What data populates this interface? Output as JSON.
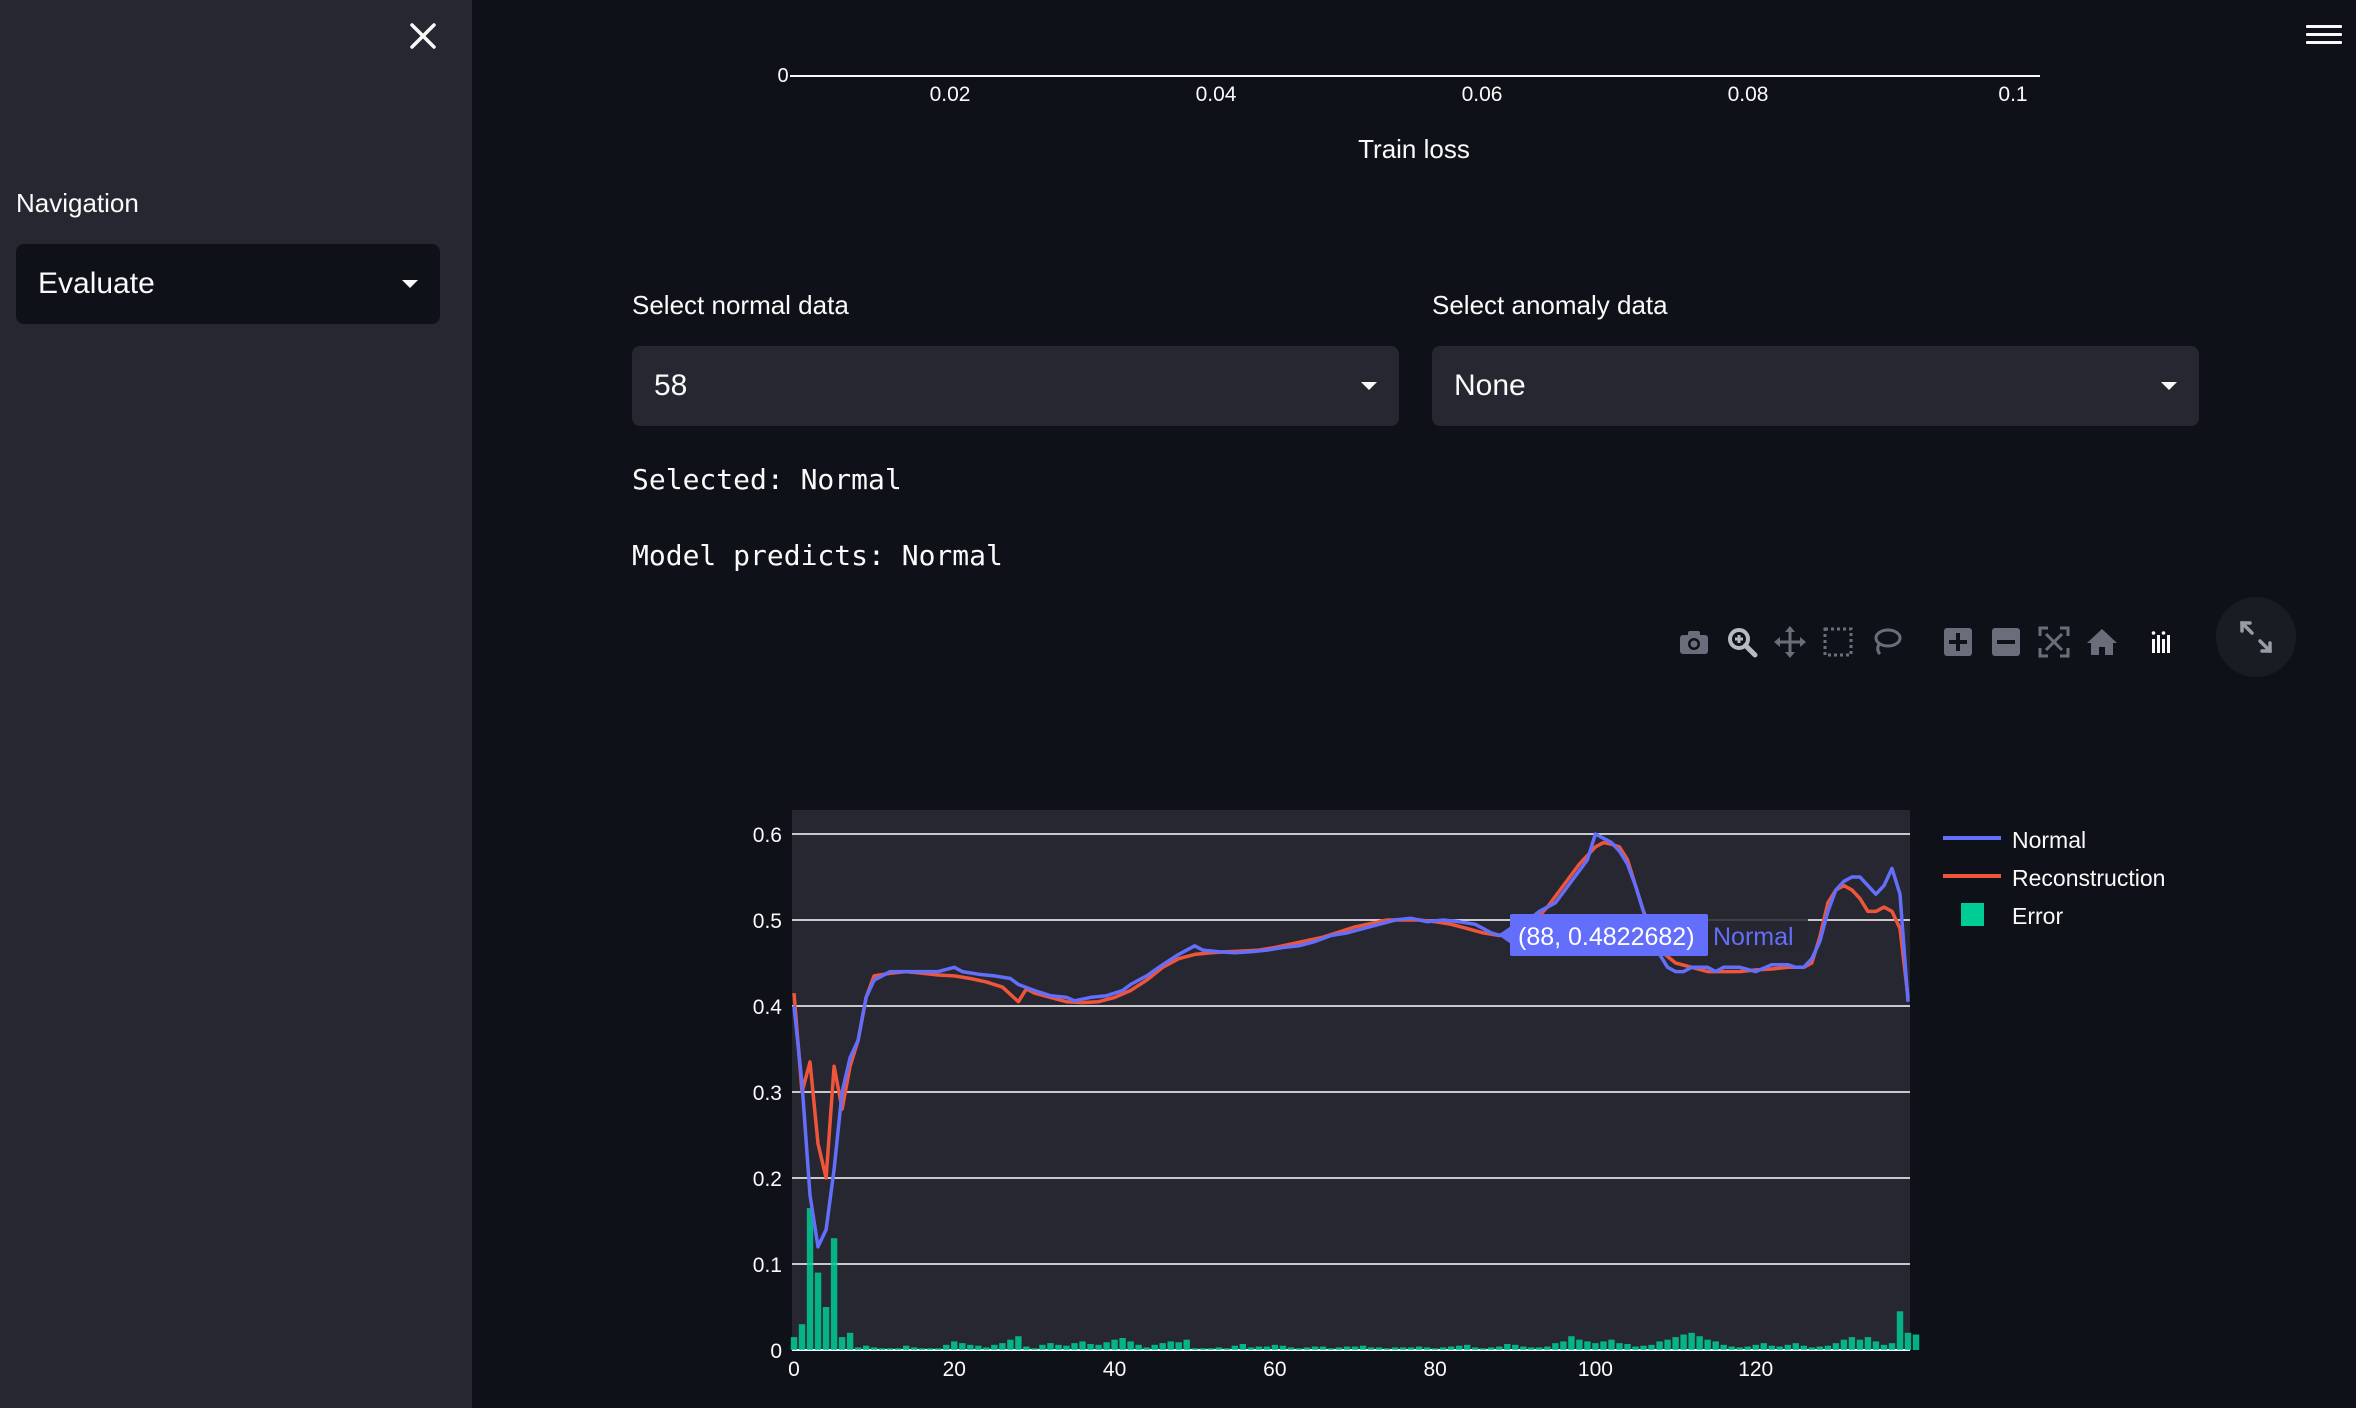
{
  "sidebar": {
    "nav_label": "Navigation",
    "nav_selected": "Evaluate"
  },
  "top_chart": {
    "x_ticks": [
      "0.02",
      "0.04",
      "0.06",
      "0.08",
      "0.1"
    ],
    "partial_y_tick": "0",
    "x_label": "Train loss"
  },
  "normal_select": {
    "label": "Select normal data",
    "value": "58"
  },
  "anomaly_select": {
    "label": "Select anomaly data",
    "value": "None"
  },
  "status": {
    "selected_text": "Selected: Normal",
    "prediction_text": "Model predicts: Normal"
  },
  "chart_data": {
    "type": "line",
    "xlim": [
      0,
      139
    ],
    "ylim": [
      0,
      0.6
    ],
    "x_ticks": [
      0,
      20,
      40,
      60,
      80,
      100,
      120
    ],
    "y_ticks": [
      0,
      0.1,
      0.2,
      0.3,
      0.4,
      0.5,
      0.6
    ],
    "x_tick_labels": [
      "0",
      "20",
      "40",
      "60",
      "80",
      "100",
      "120"
    ],
    "y_tick_labels": [
      "0",
      "0.1",
      "0.2",
      "0.3",
      "0.4",
      "0.5",
      "0.6"
    ],
    "legend": [
      "Normal",
      "Reconstruction",
      "Error"
    ],
    "hover": {
      "x": 88,
      "y": 0.4822682,
      "label": "(88, 0.4822682)",
      "series": "Normal"
    },
    "colors": {
      "normal": "#636efa",
      "reconstruction": "#ef553b",
      "error": "#00cc96",
      "plot_bg": "#262730",
      "grid": "#ffffff"
    },
    "series": [
      {
        "name": "Normal",
        "type": "line",
        "points": [
          [
            0,
            0.4
          ],
          [
            1,
            0.31
          ],
          [
            2,
            0.18
          ],
          [
            3,
            0.12
          ],
          [
            4,
            0.14
          ],
          [
            5,
            0.21
          ],
          [
            6,
            0.3
          ],
          [
            7,
            0.34
          ],
          [
            8,
            0.36
          ],
          [
            9,
            0.41
          ],
          [
            10,
            0.43
          ],
          [
            12,
            0.44
          ],
          [
            14,
            0.44
          ],
          [
            16,
            0.44
          ],
          [
            18,
            0.44
          ],
          [
            20,
            0.445
          ],
          [
            21,
            0.44
          ],
          [
            23,
            0.437
          ],
          [
            25,
            0.435
          ],
          [
            27,
            0.432
          ],
          [
            28,
            0.425
          ],
          [
            30,
            0.418
          ],
          [
            32,
            0.412
          ],
          [
            34,
            0.41
          ],
          [
            35,
            0.406
          ],
          [
            37,
            0.41
          ],
          [
            39,
            0.412
          ],
          [
            41,
            0.418
          ],
          [
            42,
            0.425
          ],
          [
            44,
            0.435
          ],
          [
            46,
            0.448
          ],
          [
            48,
            0.46
          ],
          [
            50,
            0.47
          ],
          [
            51,
            0.465
          ],
          [
            53,
            0.463
          ],
          [
            55,
            0.462
          ],
          [
            57,
            0.463
          ],
          [
            59,
            0.465
          ],
          [
            61,
            0.468
          ],
          [
            63,
            0.47
          ],
          [
            65,
            0.475
          ],
          [
            67,
            0.482
          ],
          [
            69,
            0.485
          ],
          [
            71,
            0.49
          ],
          [
            73,
            0.495
          ],
          [
            75,
            0.5
          ],
          [
            77,
            0.502
          ],
          [
            79,
            0.498
          ],
          [
            81,
            0.5
          ],
          [
            83,
            0.498
          ],
          [
            85,
            0.495
          ],
          [
            86,
            0.49
          ],
          [
            87,
            0.485
          ],
          [
            88,
            0.4822682
          ],
          [
            89,
            0.485
          ],
          [
            91,
            0.495
          ],
          [
            93,
            0.51
          ],
          [
            95,
            0.52
          ],
          [
            97,
            0.545
          ],
          [
            99,
            0.57
          ],
          [
            100,
            0.6
          ],
          [
            101,
            0.595
          ],
          [
            102,
            0.59
          ],
          [
            103,
            0.58
          ],
          [
            104,
            0.565
          ],
          [
            105,
            0.54
          ],
          [
            106,
            0.51
          ],
          [
            107,
            0.48
          ],
          [
            108,
            0.46
          ],
          [
            109,
            0.445
          ],
          [
            110,
            0.44
          ],
          [
            111,
            0.44
          ],
          [
            112,
            0.445
          ],
          [
            114,
            0.445
          ],
          [
            115,
            0.44
          ],
          [
            116,
            0.445
          ],
          [
            118,
            0.445
          ],
          [
            120,
            0.44
          ],
          [
            122,
            0.448
          ],
          [
            124,
            0.448
          ],
          [
            125,
            0.445
          ],
          [
            126,
            0.445
          ],
          [
            127,
            0.455
          ],
          [
            128,
            0.475
          ],
          [
            129,
            0.51
          ],
          [
            130,
            0.535
          ],
          [
            131,
            0.545
          ],
          [
            132,
            0.55
          ],
          [
            133,
            0.55
          ],
          [
            134,
            0.54
          ],
          [
            135,
            0.53
          ],
          [
            136,
            0.54
          ],
          [
            137,
            0.56
          ],
          [
            138,
            0.53
          ],
          [
            139,
            0.405
          ]
        ]
      },
      {
        "name": "Reconstruction",
        "type": "line",
        "points": [
          [
            0,
            0.415
          ],
          [
            1,
            0.3
          ],
          [
            2,
            0.335
          ],
          [
            3,
            0.24
          ],
          [
            4,
            0.2
          ],
          [
            5,
            0.33
          ],
          [
            6,
            0.28
          ],
          [
            7,
            0.33
          ],
          [
            8,
            0.36
          ],
          [
            9,
            0.41
          ],
          [
            10,
            0.435
          ],
          [
            12,
            0.438
          ],
          [
            14,
            0.44
          ],
          [
            16,
            0.438
          ],
          [
            18,
            0.436
          ],
          [
            20,
            0.435
          ],
          [
            22,
            0.432
          ],
          [
            24,
            0.428
          ],
          [
            26,
            0.422
          ],
          [
            28,
            0.405
          ],
          [
            29,
            0.42
          ],
          [
            30,
            0.415
          ],
          [
            32,
            0.41
          ],
          [
            34,
            0.405
          ],
          [
            36,
            0.404
          ],
          [
            38,
            0.405
          ],
          [
            40,
            0.41
          ],
          [
            42,
            0.418
          ],
          [
            44,
            0.43
          ],
          [
            46,
            0.445
          ],
          [
            48,
            0.455
          ],
          [
            50,
            0.46
          ],
          [
            52,
            0.462
          ],
          [
            54,
            0.463
          ],
          [
            56,
            0.464
          ],
          [
            58,
            0.465
          ],
          [
            60,
            0.468
          ],
          [
            62,
            0.472
          ],
          [
            64,
            0.476
          ],
          [
            66,
            0.48
          ],
          [
            68,
            0.486
          ],
          [
            70,
            0.492
          ],
          [
            72,
            0.496
          ],
          [
            74,
            0.5
          ],
          [
            76,
            0.5
          ],
          [
            78,
            0.5
          ],
          [
            80,
            0.498
          ],
          [
            82,
            0.495
          ],
          [
            84,
            0.49
          ],
          [
            86,
            0.485
          ],
          [
            88,
            0.482
          ],
          [
            90,
            0.485
          ],
          [
            92,
            0.495
          ],
          [
            94,
            0.515
          ],
          [
            96,
            0.54
          ],
          [
            98,
            0.565
          ],
          [
            100,
            0.585
          ],
          [
            101,
            0.59
          ],
          [
            102,
            0.588
          ],
          [
            103,
            0.585
          ],
          [
            104,
            0.57
          ],
          [
            105,
            0.54
          ],
          [
            106,
            0.51
          ],
          [
            107,
            0.49
          ],
          [
            108,
            0.465
          ],
          [
            110,
            0.45
          ],
          [
            112,
            0.445
          ],
          [
            114,
            0.44
          ],
          [
            116,
            0.44
          ],
          [
            118,
            0.44
          ],
          [
            120,
            0.442
          ],
          [
            122,
            0.443
          ],
          [
            124,
            0.445
          ],
          [
            126,
            0.445
          ],
          [
            127,
            0.45
          ],
          [
            128,
            0.48
          ],
          [
            129,
            0.52
          ],
          [
            130,
            0.535
          ],
          [
            131,
            0.54
          ],
          [
            132,
            0.535
          ],
          [
            133,
            0.525
          ],
          [
            134,
            0.51
          ],
          [
            135,
            0.51
          ],
          [
            136,
            0.515
          ],
          [
            137,
            0.51
          ],
          [
            138,
            0.49
          ],
          [
            139,
            0.41
          ]
        ]
      },
      {
        "name": "Error",
        "type": "bar",
        "values": [
          0.015,
          0.03,
          0.165,
          0.09,
          0.05,
          0.13,
          0.015,
          0.02,
          0.003,
          0.005,
          0.003,
          0.002,
          0.002,
          0.002,
          0.005,
          0.003,
          0.002,
          0.002,
          0.002,
          0.006,
          0.01,
          0.008,
          0.006,
          0.005,
          0.003,
          0.006,
          0.008,
          0.012,
          0.016,
          0.004,
          0.002,
          0.006,
          0.008,
          0.006,
          0.005,
          0.008,
          0.01,
          0.007,
          0.006,
          0.009,
          0.012,
          0.014,
          0.01,
          0.006,
          0.003,
          0.006,
          0.008,
          0.01,
          0.009,
          0.012,
          0.002,
          0.002,
          0.002,
          0.003,
          0.002,
          0.005,
          0.007,
          0.003,
          0.004,
          0.004,
          0.006,
          0.005,
          0.003,
          0.002,
          0.003,
          0.004,
          0.004,
          0.002,
          0.003,
          0.004,
          0.004,
          0.005,
          0.003,
          0.003,
          0.002,
          0.003,
          0.003,
          0.003,
          0.004,
          0.003,
          0.002,
          0.003,
          0.004,
          0.005,
          0.006,
          0.003,
          0.002,
          0.003,
          0.004,
          0.007,
          0.006,
          0.004,
          0.003,
          0.003,
          0.004,
          0.008,
          0.01,
          0.016,
          0.012,
          0.01,
          0.008,
          0.01,
          0.012,
          0.008,
          0.007,
          0.004,
          0.005,
          0.006,
          0.01,
          0.012,
          0.015,
          0.018,
          0.02,
          0.016,
          0.012,
          0.01,
          0.006,
          0.004,
          0.003,
          0.004,
          0.006,
          0.008,
          0.005,
          0.004,
          0.006,
          0.008,
          0.005,
          0.003,
          0.004,
          0.005,
          0.008,
          0.012,
          0.015,
          0.012,
          0.015,
          0.01,
          0.006,
          0.008,
          0.045,
          0.02,
          0.018
        ]
      }
    ]
  }
}
